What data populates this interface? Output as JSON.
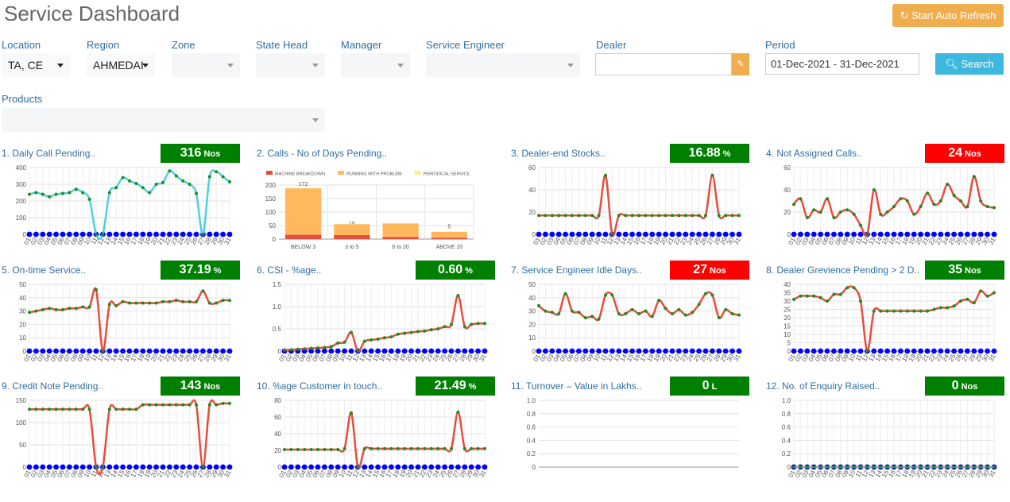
{
  "header": {
    "title": "Service Dashboard",
    "button": "Start Auto Refresh"
  },
  "filters": [
    {
      "label": "Location",
      "value": "TA, CE"
    },
    {
      "label": "Region",
      "value": "AHMEDAI"
    },
    {
      "label": "Zone"
    },
    {
      "label": "State Head"
    },
    {
      "label": "Manager"
    },
    {
      "label": "Service Engineer"
    },
    {
      "label": "Dealer"
    },
    {
      "label": "Period",
      "value": "01-Dec-2021 - 31-Dec-2021"
    },
    {
      "label": "Products"
    }
  ],
  "search": "Search",
  "days": [
    "01",
    "02",
    "03",
    "04",
    "05",
    "06",
    "07",
    "08",
    "09",
    "10",
    "11",
    "12",
    "13",
    "14",
    "15",
    "16",
    "17",
    "18",
    "19",
    "20",
    "21",
    "22",
    "23",
    "24",
    "25",
    "26",
    "27",
    "28",
    "29",
    "30",
    "31"
  ],
  "panels": [
    {
      "title": "1. Daily Call Pending..",
      "kpi": {
        "value": 316,
        "unit": "Nos",
        "color": "#008000"
      },
      "chart": {
        "type": "line",
        "ylim": [
          0,
          400
        ],
        "yticks": [
          0,
          100,
          200,
          300,
          400
        ],
        "series": [
          {
            "color": "#0000ff",
            "values": [
              0,
              0,
              0,
              0,
              0,
              0,
              0,
              0,
              0,
              0,
              0,
              0,
              0,
              0,
              0,
              0,
              0,
              0,
              0,
              0,
              0,
              0,
              0,
              0,
              0,
              0,
              0,
              0,
              0,
              0,
              0
            ]
          },
          {
            "color": "#4dd0e1",
            "point_color": "#1e8c1e",
            "values": [
              240,
              250,
              240,
              225,
              240,
              245,
              250,
              270,
              250,
              210,
              0,
              0,
              250,
              280,
              340,
              320,
              305,
              280,
              250,
              300,
              310,
              380,
              350,
              320,
              300,
              245,
              0,
              345,
              375,
              345,
              315
            ]
          }
        ]
      }
    },
    {
      "title": "2. Calls - No of Days Pending..",
      "chart": {
        "type": "stacked_bar",
        "categories": [
          "BELOW 3",
          "3 to 5",
          "6 to 20",
          "ABOVE 20"
        ],
        "ylim": [
          0,
          200
        ],
        "yticks": [
          0,
          50,
          100,
          150,
          200
        ],
        "series": [
          {
            "name": "MACHINE BREAKDOWN",
            "color": "#e74c3c",
            "values": [
              16,
              15,
              8,
              5
            ],
            "value_labels": [
              "16",
              "15",
              "8",
              "5"
            ]
          },
          {
            "name": "RUNNING WITH PROBLEM",
            "color": "#ffb85c",
            "values": [
              172,
              40,
              50,
              22
            ],
            "value_labels": [
              "172",
              null,
              null,
              null
            ]
          },
          {
            "name": "PERIODICAL SERVICE",
            "color": "#f7ef8a",
            "values": [
              0,
              0,
              0,
              0
            ],
            "value_labels": [
              null,
              null,
              null,
              null
            ]
          }
        ]
      }
    },
    {
      "title": "3. Dealer-end Stocks..",
      "kpi": {
        "value": 16.88,
        "unit": "%",
        "color": "#008000"
      },
      "chart": {
        "type": "line",
        "ylim": [
          0,
          60
        ],
        "yticks": [
          0,
          20,
          40,
          60
        ],
        "series": [
          {
            "color": "#0000ff",
            "values": [
              0,
              0,
              0,
              0,
              0,
              0,
              0,
              0,
              0,
              0,
              0,
              0,
              0,
              0,
              0,
              0,
              0,
              0,
              0,
              0,
              0,
              0,
              0,
              0,
              0,
              0,
              0,
              0,
              0,
              0,
              0
            ]
          },
          {
            "color": "#e74c3c",
            "point_color": "#1e8c1e",
            "values": [
              17,
              17,
              17,
              17,
              17,
              17,
              17,
              17,
              17,
              17,
              53,
              0,
              17,
              17,
              17,
              17,
              17,
              17,
              17,
              17,
              17,
              17,
              17,
              17,
              17,
              17,
              53,
              17,
              17,
              17,
              17
            ]
          }
        ]
      }
    },
    {
      "title": "4. Not Assigned Calls..",
      "kpi": {
        "value": 24,
        "unit": "Nos",
        "color": "#ff0000"
      },
      "chart": {
        "type": "line",
        "ylim": [
          0,
          60
        ],
        "yticks": [
          0,
          20,
          40,
          60
        ],
        "series": [
          {
            "color": "#0000ff",
            "values": [
              0,
              0,
              0,
              0,
              0,
              0,
              0,
              0,
              0,
              0,
              0,
              0,
              0,
              0,
              0,
              0,
              0,
              0,
              0,
              0,
              0,
              0,
              0,
              0,
              0,
              0,
              0,
              0,
              0,
              0,
              0
            ]
          },
          {
            "color": "#e74c3c",
            "point_color": "#1e8c1e",
            "values": [
              27,
              32,
              15,
              22,
              20,
              32,
              15,
              20,
              22,
              18,
              8,
              0,
              40,
              18,
              20,
              25,
              32,
              30,
              18,
              25,
              37,
              27,
              30,
              45,
              35,
              30,
              25,
              52,
              30,
              25,
              24
            ]
          }
        ]
      }
    },
    {
      "title": "5. On-time Service..",
      "kpi": {
        "value": 37.19,
        "unit": "%",
        "color": "#008000"
      },
      "chart": {
        "type": "line",
        "ylim": [
          0,
          50
        ],
        "yticks": [
          0,
          10,
          20,
          30,
          40,
          50
        ],
        "series": [
          {
            "color": "#0000ff",
            "values": [
              0,
              0,
              0,
              0,
              0,
              0,
              0,
              0,
              0,
              0,
              0,
              0,
              0,
              0,
              0,
              0,
              0,
              0,
              0,
              0,
              0,
              0,
              0,
              0,
              0,
              0,
              0,
              0,
              0,
              0,
              0
            ]
          },
          {
            "color": "#e74c3c",
            "point_color": "#1e8c1e",
            "values": [
              29,
              30,
              31,
              32,
              31,
              31,
              32,
              32,
              33,
              33,
              46,
              0,
              35,
              34,
              37,
              36,
              36,
              36,
              36,
              36,
              37,
              37,
              38,
              37,
              37,
              37,
              45,
              36,
              36,
              38,
              38
            ]
          }
        ]
      }
    },
    {
      "title": "6. CSI - %age..",
      "kpi": {
        "value": "0.60",
        "unit": "%",
        "color": "#008000"
      },
      "chart": {
        "type": "line",
        "ylim": [
          0,
          1.5
        ],
        "yticks": [
          0,
          0.5,
          {
            "value": 1,
            "label": "1.0"
          },
          1.5
        ],
        "series": [
          {
            "color": "#0000ff",
            "values": [
              0,
              0,
              0,
              0,
              0,
              0,
              0,
              0,
              0,
              0,
              0,
              0,
              0,
              0,
              0,
              0,
              0,
              0,
              0,
              0,
              0,
              0,
              0,
              0,
              0,
              0,
              0,
              0,
              0,
              0,
              0
            ]
          },
          {
            "color": "#e74c3c",
            "point_color": "#1e8c1e",
            "values": [
              0.02,
              0.03,
              0.04,
              0.05,
              0.06,
              0.07,
              0.08,
              0.1,
              0.18,
              0.2,
              0.42,
              0,
              0.22,
              0.25,
              0.27,
              0.3,
              0.32,
              0.38,
              0.4,
              0.42,
              0.44,
              0.45,
              0.48,
              0.5,
              0.55,
              0.6,
              1.25,
              0.55,
              0.6,
              0.62,
              0.62
            ]
          }
        ]
      }
    },
    {
      "title": "7. Service Engineer Idle Days..",
      "kpi": {
        "value": 27,
        "unit": "Nos",
        "color": "#ff0000"
      },
      "chart": {
        "type": "line",
        "ylim": [
          0,
          50
        ],
        "yticks": [
          0,
          10,
          20,
          30,
          40,
          50
        ],
        "series": [
          {
            "color": "#0000ff",
            "values": [
              0,
              0,
              0,
              0,
              0,
              0,
              0,
              0,
              0,
              0,
              0,
              0,
              0,
              0,
              0,
              0,
              0,
              0,
              0,
              0,
              0,
              0,
              0,
              0,
              0,
              0,
              0,
              0,
              0,
              0,
              0
            ]
          },
          {
            "color": "#e74c3c",
            "point_color": "#1e8c1e",
            "values": [
              34,
              30,
              29,
              28,
              43,
              30,
              29,
              25,
              26,
              24,
              42,
              42,
              28,
              28,
              31,
              28,
              30,
              26,
              38,
              32,
              28,
              31,
              27,
              29,
              35,
              43,
              42,
              25,
              31,
              28,
              27
            ]
          }
        ]
      }
    },
    {
      "title": "8. Dealer Grevience Pending > 2 D..",
      "kpi": {
        "value": 35,
        "unit": "Nos",
        "color": "#008000"
      },
      "chart": {
        "type": "line",
        "ylim": [
          0,
          40
        ],
        "yticks": [
          0,
          5,
          10,
          15,
          20,
          25,
          30,
          35,
          40
        ],
        "series": [
          {
            "color": "#0000ff",
            "values": [
              0,
              0,
              0,
              0,
              0,
              0,
              0,
              0,
              0,
              0,
              0,
              0,
              0,
              0,
              0,
              0,
              0,
              0,
              0,
              0,
              0,
              0,
              0,
              0,
              0,
              0,
              0,
              0,
              0,
              0,
              0
            ]
          },
          {
            "color": "#e74c3c",
            "point_color": "#1e8c1e",
            "values": [
              31,
              33,
              33,
              33,
              32,
              30,
              34,
              34,
              38,
              38,
              30,
              0,
              24,
              24,
              24,
              24,
              24,
              24,
              24,
              24,
              24,
              25,
              26,
              26,
              27,
              30,
              31,
              29,
              36,
              33,
              35
            ]
          }
        ]
      }
    },
    {
      "title": "9. Credit Note Pending..",
      "kpi": {
        "value": 143,
        "unit": "Nos",
        "color": "#008000"
      },
      "chart": {
        "type": "line",
        "ylim": [
          0,
          150
        ],
        "yticks": [
          0,
          50,
          100,
          150
        ],
        "series": [
          {
            "color": "#0000ff",
            "values": [
              0,
              0,
              0,
              0,
              0,
              0,
              0,
              0,
              0,
              0,
              0,
              0,
              0,
              0,
              0,
              0,
              0,
              0,
              0,
              0,
              0,
              0,
              0,
              0,
              0,
              0,
              0,
              0,
              0,
              0,
              0
            ]
          },
          {
            "color": "#e74c3c",
            "point_color": "#1e8c1e",
            "values": [
              130,
              130,
              130,
              130,
              130,
              130,
              130,
              130,
              130,
              130,
              0,
              0,
              130,
              130,
              130,
              130,
              130,
              140,
              140,
              140,
              140,
              140,
              140,
              140,
              140,
              140,
              0,
              140,
              140,
              143,
              143
            ]
          }
        ]
      }
    },
    {
      "title": "10. %age Customer in touch..",
      "kpi": {
        "value": 21.49,
        "unit": "%",
        "color": "#008000"
      },
      "chart": {
        "type": "line",
        "ylim": [
          0,
          80
        ],
        "yticks": [
          0,
          20,
          40,
          60,
          80
        ],
        "series": [
          {
            "color": "#0000ff",
            "values": [
              0,
              0,
              0,
              0,
              0,
              0,
              0,
              0,
              0,
              0,
              0,
              0,
              0,
              0,
              0,
              0,
              0,
              0,
              0,
              0,
              0,
              0,
              0,
              0,
              0,
              0,
              0,
              0,
              0,
              0,
              0
            ]
          },
          {
            "color": "#e74c3c",
            "point_color": "#1e8c1e",
            "values": [
              21,
              21,
              21,
              21,
              21,
              21,
              21,
              21,
              21,
              22,
              65,
              0,
              22,
              22,
              22,
              22,
              22,
              22,
              22,
              22,
              22,
              22,
              22,
              22,
              22,
              22,
              66,
              22,
              22,
              22,
              22
            ]
          }
        ]
      }
    },
    {
      "title": "11. Turnover – Value in Lakhs..",
      "kpi": {
        "value": 0,
        "unit": "L",
        "color": "#008000"
      },
      "chart": {
        "type": "line",
        "ylim": [
          0,
          1
        ],
        "yticks": [
          0,
          0.2,
          0.4,
          0.6,
          0.8,
          {
            "value": 1,
            "label": "1.0"
          }
        ],
        "series": []
      }
    },
    {
      "title": "12. No. of Enquiry Raised..",
      "kpi": {
        "value": 0,
        "unit": "Nos",
        "color": "#008000"
      },
      "chart": {
        "type": "line",
        "ylim": [
          0,
          1
        ],
        "yticks": [
          0,
          0.2,
          0.4,
          0.6,
          0.8,
          {
            "value": 1,
            "label": "1.0"
          }
        ],
        "series": [
          {
            "color": "#0000ff",
            "values": [
              0,
              0,
              0,
              0,
              0,
              0,
              0,
              0,
              0,
              0,
              0,
              0,
              0,
              0,
              0,
              0,
              0,
              0,
              0,
              0,
              0,
              0,
              0,
              0,
              0,
              0,
              0,
              0,
              0,
              0,
              0
            ]
          },
          {
            "color": "#9e9e9e",
            "point_color": "#1e8c1e",
            "values": [
              0,
              0,
              0,
              0,
              0,
              0,
              0,
              0,
              0,
              0,
              0,
              0,
              0,
              0,
              0,
              0,
              0,
              0,
              0,
              0,
              0,
              0,
              0,
              0,
              0,
              0,
              0,
              0,
              0,
              0,
              0
            ]
          }
        ]
      }
    }
  ]
}
